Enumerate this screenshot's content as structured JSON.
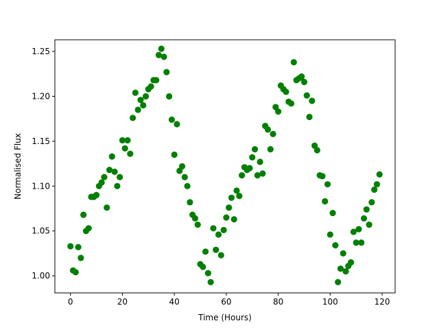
{
  "chart_data": {
    "type": "scatter",
    "title": "",
    "xlabel": "Time (Hours)",
    "ylabel": "Normalised Flux",
    "xlim": [
      -6,
      125
    ],
    "ylim": [
      0.981,
      1.263
    ],
    "xticks": [
      0,
      20,
      40,
      60,
      80,
      100,
      120
    ],
    "yticks": [
      1.0,
      1.05,
      1.1,
      1.15,
      1.2,
      1.25
    ],
    "xtick_labels": [
      "0",
      "20",
      "40",
      "60",
      "80",
      "100",
      "120"
    ],
    "ytick_labels": [
      "1.00",
      "1.05",
      "1.10",
      "1.15",
      "1.20",
      "1.25"
    ],
    "grid": false,
    "legend": "none",
    "marker_color": "#008000",
    "series": [
      {
        "x": [
          0,
          1,
          2,
          3,
          4,
          5,
          6,
          7,
          8,
          9,
          10,
          11,
          12,
          13,
          14,
          15,
          16,
          17,
          18,
          19,
          20,
          21,
          22,
          23,
          24,
          25,
          26,
          27,
          28,
          29,
          30,
          31,
          32,
          33,
          34,
          35,
          36,
          37,
          38,
          39,
          40,
          41,
          42,
          43,
          44,
          45,
          46,
          47,
          48,
          49,
          50,
          51,
          52,
          53,
          54,
          55,
          56,
          57,
          58,
          59,
          60,
          61,
          62,
          63,
          64,
          65,
          66,
          67,
          68,
          69,
          70,
          71,
          72,
          73,
          74,
          75,
          76,
          77,
          78,
          79,
          80,
          81,
          82,
          83,
          84,
          85,
          86,
          87,
          88,
          89,
          90,
          91,
          92,
          93,
          94,
          95,
          96,
          97,
          98,
          99,
          100,
          101,
          102,
          103,
          104,
          105,
          106,
          107,
          108,
          109,
          110,
          111,
          112,
          113,
          114,
          115,
          116,
          117,
          118,
          119
        ],
        "y": [
          1.033,
          1.006,
          1.004,
          1.032,
          1.02,
          1.068,
          1.05,
          1.053,
          1.088,
          1.088,
          1.09,
          1.1,
          1.104,
          1.11,
          1.076,
          1.118,
          1.133,
          1.116,
          1.1,
          1.11,
          1.151,
          1.142,
          1.151,
          1.136,
          1.176,
          1.204,
          1.185,
          1.196,
          1.19,
          1.2,
          1.208,
          1.211,
          1.218,
          1.218,
          1.246,
          1.253,
          1.244,
          1.227,
          1.2,
          1.174,
          1.135,
          1.169,
          1.117,
          1.122,
          1.11,
          1.1,
          1.082,
          1.068,
          1.064,
          1.057,
          1.013,
          1.01,
          1.027,
          1.003,
          0.993,
          1.053,
          1.029,
          1.046,
          1.023,
          1.051,
          1.065,
          1.076,
          1.087,
          1.063,
          1.095,
          1.089,
          1.112,
          1.121,
          1.118,
          1.12,
          1.132,
          1.141,
          1.112,
          1.127,
          1.114,
          1.167,
          1.163,
          1.141,
          1.158,
          1.188,
          1.183,
          1.212,
          1.208,
          1.205,
          1.194,
          1.192,
          1.238,
          1.218,
          1.22,
          1.222,
          1.216,
          1.201,
          1.177,
          1.195,
          1.145,
          1.14,
          1.112,
          1.111,
          1.083,
          1.102,
          1.046,
          1.07,
          1.034,
          0.993,
          1.008,
          1.025,
          1.005,
          1.011,
          1.015,
          1.049,
          1.037,
          1.052,
          1.037,
          1.064,
          1.074,
          1.057,
          1.082,
          1.096,
          1.102,
          1.113
        ]
      }
    ]
  }
}
